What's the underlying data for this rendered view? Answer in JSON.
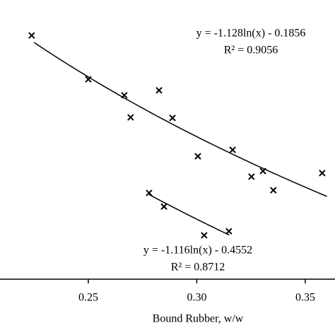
{
  "chart_data": {
    "type": "scatter",
    "x_label": "Bound Rubber, w/w",
    "xlim": [
      0.2093,
      0.3637
    ],
    "ylim": [
      0.682,
      1.643
    ],
    "xticks": [
      0.25,
      {
        "value": 0.3,
        "label": "0.30"
      },
      0.35
    ],
    "color": "#000000",
    "series": [
      {
        "x": [
          0.2239,
          0.25,
          0.2666,
          0.2695,
          0.2826,
          0.2888,
          0.3005,
          0.3165,
          0.3252,
          0.3305,
          0.3353,
          0.3578
        ],
        "values": [
          1.521,
          1.37,
          1.315,
          1.239,
          1.332,
          1.237,
          1.105,
          1.127,
          1.035,
          1.054,
          0.988,
          1.047
        ]
      },
      {
        "x": [
          0.278,
          0.2849,
          0.3034,
          0.3148
        ],
        "values": [
          0.979,
          0.932,
          0.833,
          0.847
        ]
      }
    ],
    "trendlines": [
      {
        "equation": "y = -1.128ln(x) - 0.1856",
        "r2": "R² = 0.9056",
        "a": -1.128,
        "b": -0.1856,
        "x": [
          0.225,
          0.36
        ]
      },
      {
        "equation": "y = -1.116ln(x) - 0.4552",
        "r2": "R² = 0.8712",
        "a": -1.116,
        "b": -0.4552,
        "x": [
          0.278,
          0.315
        ]
      }
    ]
  }
}
